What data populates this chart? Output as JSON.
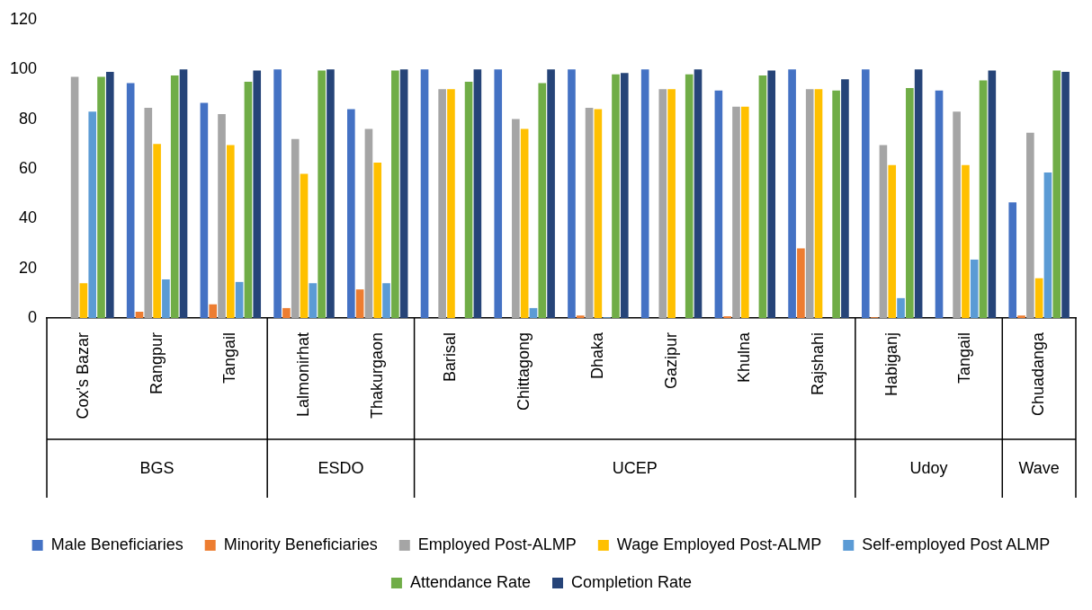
{
  "chart_data": {
    "type": "bar",
    "categories": [
      "Cox's Bazar",
      "Rangpur",
      "Tangail",
      "Lalmonirhat",
      "Thakurgaon",
      "Barisal",
      "Chittagong",
      "Dhaka",
      "Gazipur",
      "Khulna",
      "Rajshahi",
      "Habiganj",
      "Tangail",
      "Chuadanga"
    ],
    "series": [
      {
        "name": "Male Beneficiaries",
        "color": "#4472c4",
        "values": [
          0,
          94.5,
          86.5,
          100,
          84,
          100,
          100,
          100,
          100,
          91.5,
          100,
          100,
          91.5,
          46.5
        ]
      },
      {
        "name": "Minority Beneficiaries",
        "color": "#ed7d31",
        "values": [
          0,
          2.5,
          5.5,
          4,
          11.5,
          0,
          0,
          1,
          0,
          0.7,
          28,
          0.3,
          0,
          1
        ]
      },
      {
        "name": "Employed Post-ALMP",
        "color": "#a5a5a5",
        "values": [
          97,
          84.5,
          82,
          72,
          76,
          92,
          80,
          84.5,
          92,
          85,
          92,
          69.5,
          83,
          74.5
        ]
      },
      {
        "name": "Wage Employed Post-ALMP",
        "color": "#ffc000",
        "values": [
          14,
          70,
          69.5,
          58,
          62.5,
          92,
          76,
          84,
          92,
          85,
          92,
          61.5,
          61.5,
          16
        ]
      },
      {
        "name": "Self-employed Post ALMP",
        "color": "#5b9bd5",
        "values": [
          83,
          15.5,
          14.5,
          14,
          14,
          0,
          4,
          0.3,
          0,
          0,
          0,
          8,
          23.5,
          58.5
        ]
      },
      {
        "name": "Attendance Rate",
        "color": "#70ad47",
        "values": [
          97,
          97.5,
          95,
          99.5,
          99.5,
          95,
          94.5,
          98,
          98,
          97.5,
          91.5,
          92.5,
          95.5,
          99.5
        ]
      },
      {
        "name": "Completion Rate",
        "color": "#264478",
        "values": [
          99,
          100,
          99.5,
          100,
          100,
          100,
          100,
          98.5,
          100,
          99.5,
          96,
          100,
          99.5,
          99
        ]
      }
    ],
    "annotations": [
      "BGS",
      "ESDO",
      "UCEP",
      "Udoy",
      "Wave"
    ],
    "ylim": [
      0,
      120
    ],
    "yticks": [
      0,
      20,
      40,
      60,
      80,
      100,
      120
    ],
    "grid": false,
    "legend": "bottom"
  }
}
